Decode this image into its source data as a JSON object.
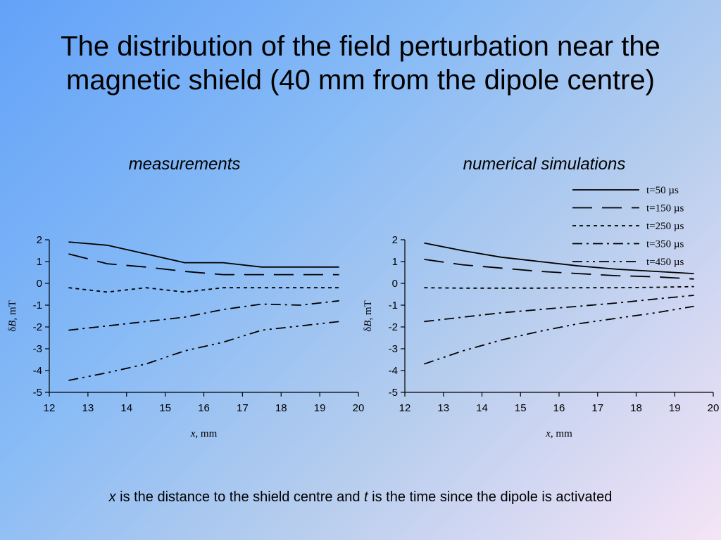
{
  "slide": {
    "title_line1": "The distribution of the field perturbation near the",
    "title_line2": "magnetic shield (40 mm from the dipole centre)",
    "caption_var1": "x",
    "caption_mid": " is the distance to the shield centre and ",
    "caption_var2": "t",
    "caption_end": " is the time since the dipole is activated"
  },
  "legend": [
    {
      "label": "t=50 µs",
      "dash": "solid"
    },
    {
      "label": "t=150 µs",
      "dash": "longdash"
    },
    {
      "label": "t=250 µs",
      "dash": "dotted"
    },
    {
      "label": "t=350 µs",
      "dash": "dashdot"
    },
    {
      "label": "t=450 µs",
      "dash": "dashdotdot"
    }
  ],
  "chart_data": [
    {
      "type": "line",
      "title": "measurements",
      "xlabel_var": "x",
      "xlabel_unit": ", mm",
      "ylabel_prefix": "δ",
      "ylabel_var": "B",
      "ylabel_unit": ", mT",
      "xlim": [
        12,
        20
      ],
      "ylim": [
        -5,
        2
      ],
      "xticks": [
        12,
        13,
        14,
        15,
        16,
        17,
        18,
        19,
        20
      ],
      "yticks": [
        2,
        1,
        0,
        -1,
        -2,
        -3,
        -4,
        -5
      ],
      "x": [
        12.5,
        13.5,
        14.5,
        15.5,
        16.5,
        17.5,
        18.5,
        19.5
      ],
      "series": [
        {
          "name": "t=50 µs",
          "values": [
            1.9,
            1.75,
            1.35,
            0.95,
            0.95,
            0.75,
            0.75,
            0.75
          ]
        },
        {
          "name": "t=150 µs",
          "values": [
            1.35,
            0.9,
            0.75,
            0.55,
            0.4,
            0.4,
            0.4,
            0.4
          ]
        },
        {
          "name": "t=250 µs",
          "values": [
            -0.2,
            -0.4,
            -0.2,
            -0.4,
            -0.2,
            -0.2,
            -0.2,
            -0.2
          ]
        },
        {
          "name": "t=350 µs",
          "values": [
            -2.15,
            -1.95,
            -1.75,
            -1.55,
            -1.2,
            -0.95,
            -1.0,
            -0.8
          ]
        },
        {
          "name": "t=450 µs",
          "values": [
            -4.45,
            -4.1,
            -3.7,
            -3.1,
            -2.7,
            -2.15,
            -1.95,
            -1.75
          ]
        }
      ]
    },
    {
      "type": "line",
      "title": "numerical simulations",
      "xlabel_var": "x",
      "xlabel_unit": ", mm",
      "ylabel_prefix": "δ",
      "ylabel_var": "B",
      "ylabel_unit": ", mT",
      "xlim": [
        12,
        20
      ],
      "ylim": [
        -5,
        2
      ],
      "xticks": [
        12,
        13,
        14,
        15,
        16,
        17,
        18,
        19,
        20
      ],
      "yticks": [
        2,
        1,
        0,
        -1,
        -2,
        -3,
        -4,
        -5
      ],
      "x": [
        12.5,
        13.5,
        14.5,
        15.5,
        16.5,
        17.5,
        18.5,
        19.5
      ],
      "series": [
        {
          "name": "t=50 µs",
          "values": [
            1.85,
            1.5,
            1.2,
            1.0,
            0.8,
            0.65,
            0.55,
            0.45
          ]
        },
        {
          "name": "t=150 µs",
          "values": [
            1.1,
            0.85,
            0.7,
            0.55,
            0.45,
            0.35,
            0.3,
            0.2
          ]
        },
        {
          "name": "t=250 µs",
          "values": [
            -0.2,
            -0.22,
            -0.22,
            -0.22,
            -0.2,
            -0.2,
            -0.18,
            -0.15
          ]
        },
        {
          "name": "t=350 µs",
          "values": [
            -1.75,
            -1.55,
            -1.35,
            -1.2,
            -1.05,
            -0.9,
            -0.72,
            -0.55
          ]
        },
        {
          "name": "t=450 µs",
          "values": [
            -3.7,
            -3.1,
            -2.6,
            -2.2,
            -1.85,
            -1.6,
            -1.35,
            -1.05
          ]
        }
      ]
    }
  ]
}
